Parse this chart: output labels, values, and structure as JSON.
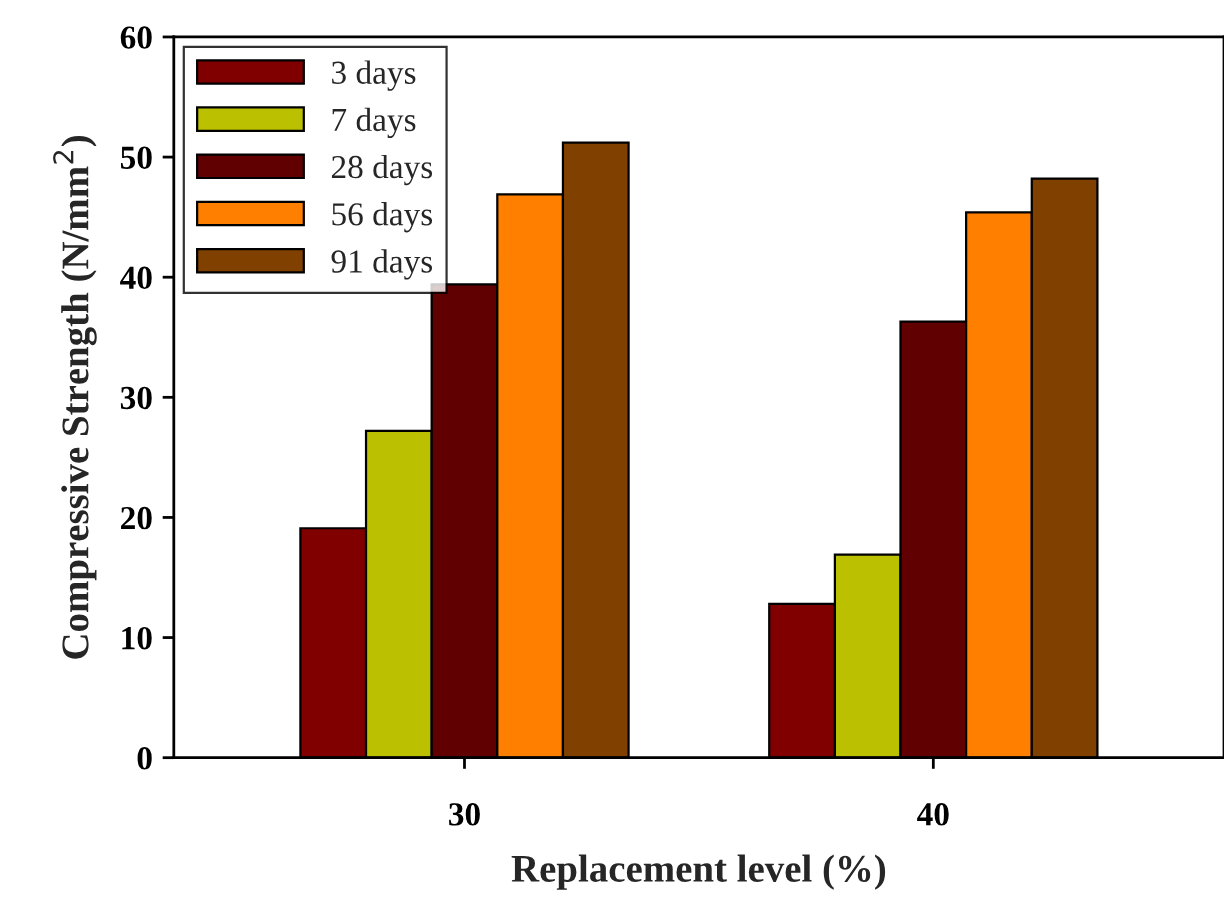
{
  "chart_data": {
    "type": "bar",
    "xlabel": "Replacement level (%)",
    "ylabel": "Compressive Strength (N/mm$^{2}$)",
    "categories": [
      "30",
      "40"
    ],
    "ylim": [
      0,
      60
    ],
    "yticks": [
      0,
      10,
      20,
      30,
      40,
      50,
      60
    ],
    "legend": "top left",
    "grid": false,
    "series": [
      {
        "name": "3 days",
        "color": "#800000",
        "values": [
          19.1,
          12.8
        ]
      },
      {
        "name": "7 days",
        "color": "#bbc000",
        "values": [
          27.2,
          16.9
        ]
      },
      {
        "name": "28 days",
        "color": "#600000",
        "values": [
          39.4,
          36.3
        ]
      },
      {
        "name": "56 days",
        "color": "#ff8000",
        "values": [
          46.9,
          45.4
        ]
      },
      {
        "name": "91 days",
        "color": "#804000",
        "values": [
          51.2,
          48.2
        ]
      }
    ]
  }
}
